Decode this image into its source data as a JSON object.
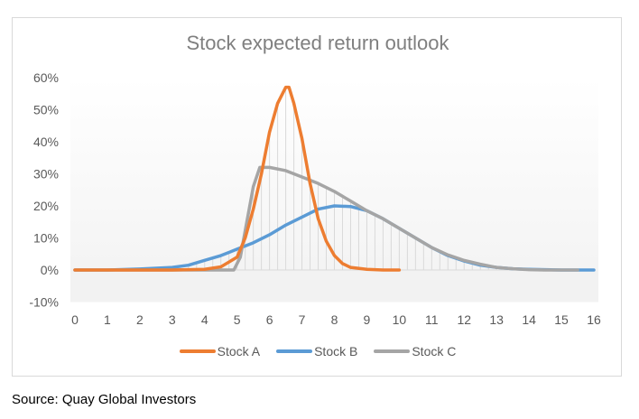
{
  "title": "Stock expected return outlook",
  "source": "Source: Quay Global Investors",
  "legend": [
    {
      "label": "Stock A",
      "color": "#ed7d31"
    },
    {
      "label": "Stock B",
      "color": "#5b9bd5"
    },
    {
      "label": "Stock C",
      "color": "#a5a5a5"
    }
  ],
  "chart_data": {
    "type": "line",
    "title": "Stock expected return outlook",
    "xlabel": "",
    "ylabel": "",
    "xlim": [
      0,
      16
    ],
    "ylim": [
      -0.1,
      0.6
    ],
    "x_ticks": [
      "0",
      "1",
      "2",
      "3",
      "4",
      "5",
      "6",
      "7",
      "8",
      "9",
      "10",
      "11",
      "12",
      "13",
      "14",
      "15",
      "16"
    ],
    "y_ticks": [
      "-10%",
      "0%",
      "10%",
      "20%",
      "30%",
      "40%",
      "50%",
      "60%"
    ],
    "grid": "vertical drop lines",
    "legend_position": "bottom",
    "series": [
      {
        "name": "Stock A",
        "color": "#ed7d31",
        "x": [
          0,
          1,
          2,
          3,
          4,
          4.5,
          5,
          5.25,
          5.5,
          5.75,
          6,
          6.25,
          6.5,
          6.6,
          6.75,
          7,
          7.25,
          7.5,
          7.75,
          8,
          8.25,
          8.5,
          9,
          9.5,
          10
        ],
        "y": [
          0,
          0,
          0,
          0,
          0.002,
          0.01,
          0.04,
          0.1,
          0.19,
          0.3,
          0.43,
          0.52,
          0.57,
          0.57,
          0.52,
          0.41,
          0.27,
          0.16,
          0.09,
          0.045,
          0.02,
          0.008,
          0.002,
          0,
          0
        ]
      },
      {
        "name": "Stock B",
        "color": "#5b9bd5",
        "x": [
          0,
          1,
          2,
          3,
          3.5,
          4,
          4.5,
          5,
          5.5,
          6,
          6.5,
          7,
          7.5,
          8,
          8.5,
          9,
          9.5,
          10,
          10.5,
          11,
          11.5,
          12,
          12.5,
          13,
          13.5,
          14,
          14.5,
          15,
          15.5,
          16
        ],
        "y": [
          0,
          0,
          0.003,
          0.008,
          0.015,
          0.03,
          0.045,
          0.065,
          0.085,
          0.11,
          0.14,
          0.165,
          0.19,
          0.2,
          0.198,
          0.185,
          0.16,
          0.13,
          0.1,
          0.07,
          0.045,
          0.028,
          0.015,
          0.008,
          0.004,
          0.002,
          0.001,
          0,
          0,
          0
        ]
      },
      {
        "name": "Stock C",
        "color": "#a5a5a5",
        "x": [
          0,
          1,
          2,
          3,
          4,
          4.9,
          5.1,
          5.3,
          5.5,
          5.7,
          6,
          6.5,
          7,
          7.5,
          8,
          8.5,
          9,
          9.5,
          10,
          10.5,
          11,
          11.5,
          12,
          12.5,
          13,
          13.5,
          14,
          14.5,
          15,
          15.5
        ],
        "y": [
          0,
          0,
          0,
          0,
          0,
          0,
          0.04,
          0.15,
          0.26,
          0.32,
          0.32,
          0.31,
          0.29,
          0.27,
          0.245,
          0.215,
          0.185,
          0.16,
          0.13,
          0.1,
          0.07,
          0.047,
          0.03,
          0.018,
          0.008,
          0.004,
          0.001,
          0,
          0,
          0
        ]
      }
    ]
  }
}
